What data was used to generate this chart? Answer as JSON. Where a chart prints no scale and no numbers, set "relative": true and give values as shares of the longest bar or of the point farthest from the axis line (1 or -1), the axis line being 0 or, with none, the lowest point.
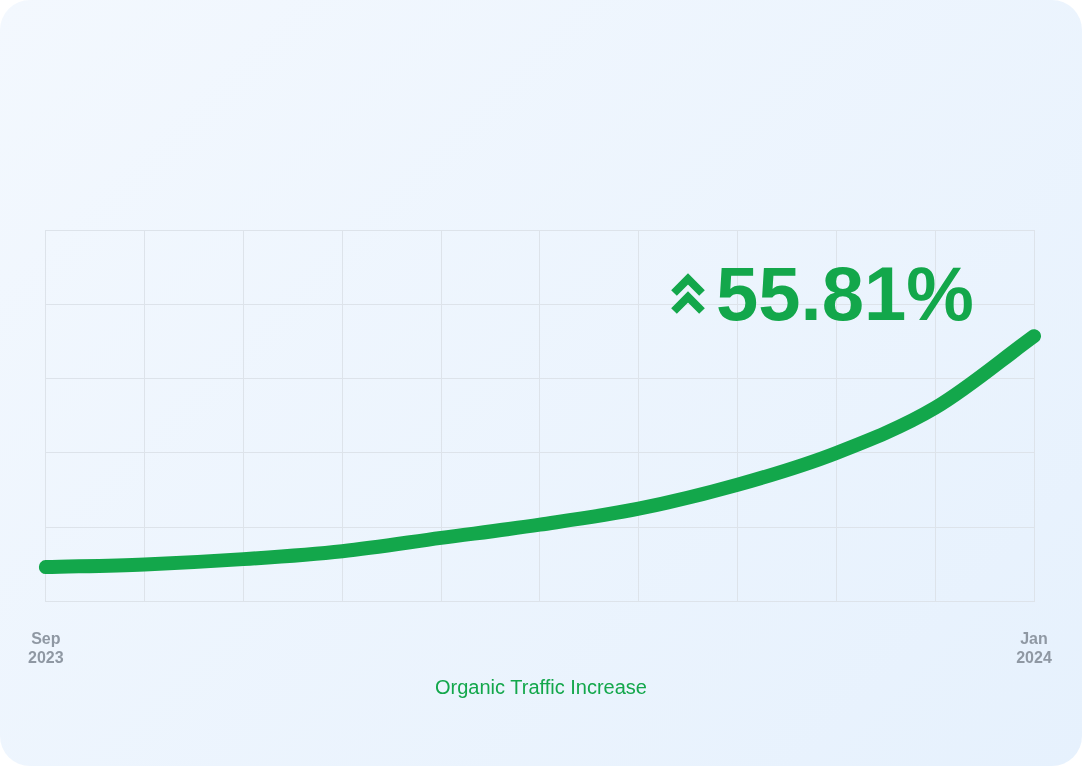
{
  "chart_data": {
    "type": "line",
    "title": "Organic Traffic Increase",
    "categories": [
      "Sep 2023",
      null,
      null,
      null,
      null,
      null,
      null,
      null,
      null,
      null,
      "Jan 2024"
    ],
    "relative": true,
    "series": [
      {
        "color": "#13a74b",
        "values": [
          0.13,
          0.14,
          0.16,
          0.19,
          0.24,
          0.29,
          0.35,
          0.44,
          0.56,
          0.73,
          1
        ]
      }
    ],
    "annotations": [
      "55.81%"
    ],
    "grid": true,
    "marker": "none",
    "line_style": "solid",
    "legend": false
  }
}
